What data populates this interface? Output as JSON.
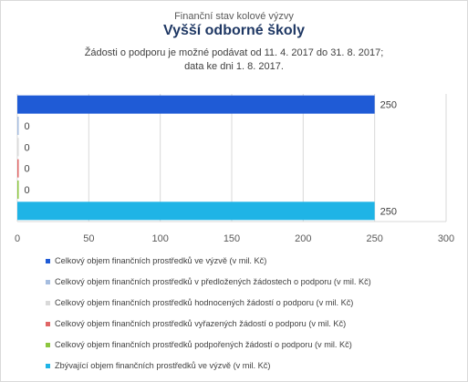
{
  "header": {
    "subtitle": "Finanční stav kolové výzvy",
    "title": "Vyšší odborné školy",
    "note": "Žádosti o podporu je možné  podávat od 11. 4. 2017 do 31. 8. 2017;",
    "date_line": "data ke dni 1. 8. 2017."
  },
  "chart_data": {
    "type": "bar",
    "orientation": "horizontal",
    "title": "Vyšší odborné školy",
    "subtitle": "Finanční stav kolové výzvy",
    "xlim": [
      0,
      300
    ],
    "x_ticks": [
      0,
      50,
      100,
      150,
      200,
      250,
      300
    ],
    "grid": true,
    "legend_position": "bottom",
    "series": [
      {
        "name": "Celkový objem finančních prostředků ve výzvě (v mil. Kč)",
        "value": 250,
        "label": "250",
        "color": "#1f5bd6"
      },
      {
        "name": "Celkový objem finančních prostředků v předložených žádostech o podporu (v mil. Kč)",
        "value": 0,
        "label": "0",
        "color": "#a6bddf"
      },
      {
        "name": "Celkový objem finančních prostředků hodnocených žádostí o podporu (v mil. Kč)",
        "value": 0,
        "label": "0",
        "color": "#d9d9d9"
      },
      {
        "name": "Celkový objem finančních prostředků vyřazených žádostí o podporu (v mil. Kč)",
        "value": 0,
        "label": "0",
        "color": "#e06666"
      },
      {
        "name": "Celkový objem finančních prostředků podpořených žádostí o podporu (v mil. Kč)",
        "value": 0,
        "label": "0",
        "color": "#8cc63f"
      },
      {
        "name": "Zbývající objem finančních prostředků ve výzvě (v mil. Kč)",
        "value": 250,
        "label": "250",
        "color": "#1fb4e6"
      }
    ]
  }
}
